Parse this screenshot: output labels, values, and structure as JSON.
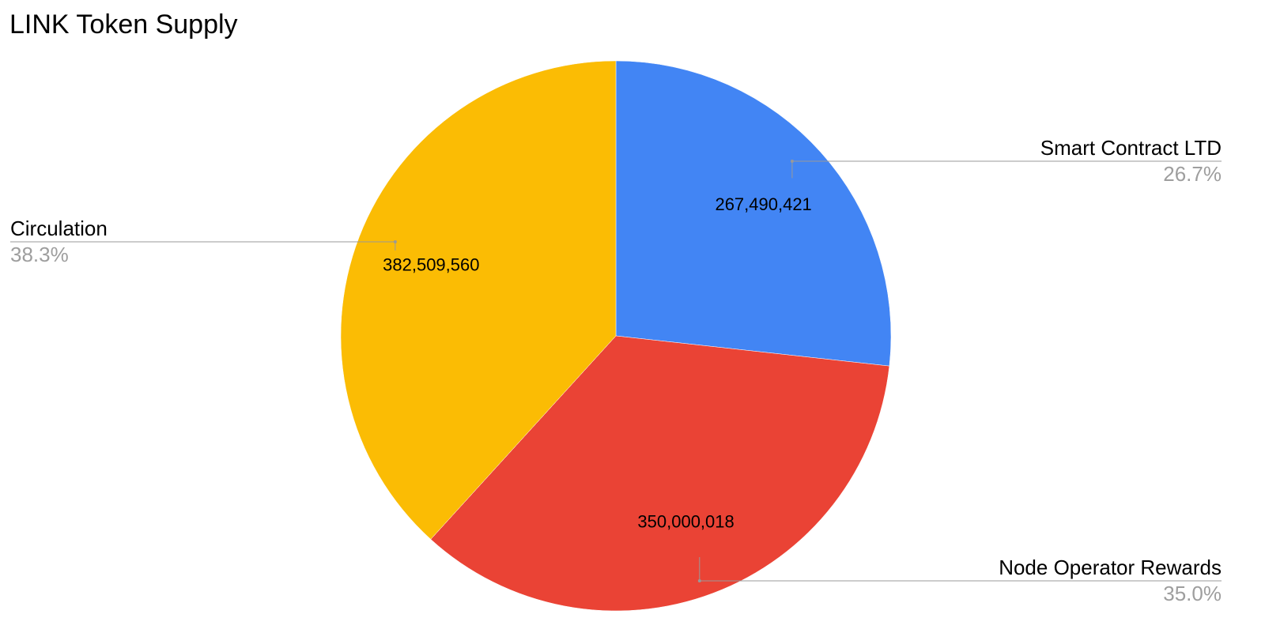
{
  "chart_data": {
    "type": "pie",
    "title": "LINK Token Supply",
    "slices": [
      {
        "label": "Smart Contract LTD",
        "value": 267490421,
        "value_label": "267,490,421",
        "percent_label": "26.7%",
        "color": "#4285F4"
      },
      {
        "label": "Node Operator Rewards",
        "value": 350000018,
        "value_label": "350,000,018",
        "percent_label": "35.0%",
        "color": "#EA4335"
      },
      {
        "label": "Circulation",
        "value": 382509560,
        "value_label": "382,509,560",
        "percent_label": "38.3%",
        "color": "#FBBC04"
      }
    ],
    "start_angle": "12 o'clock",
    "direction": "clockwise",
    "legend": "none",
    "labels": "callouts"
  }
}
